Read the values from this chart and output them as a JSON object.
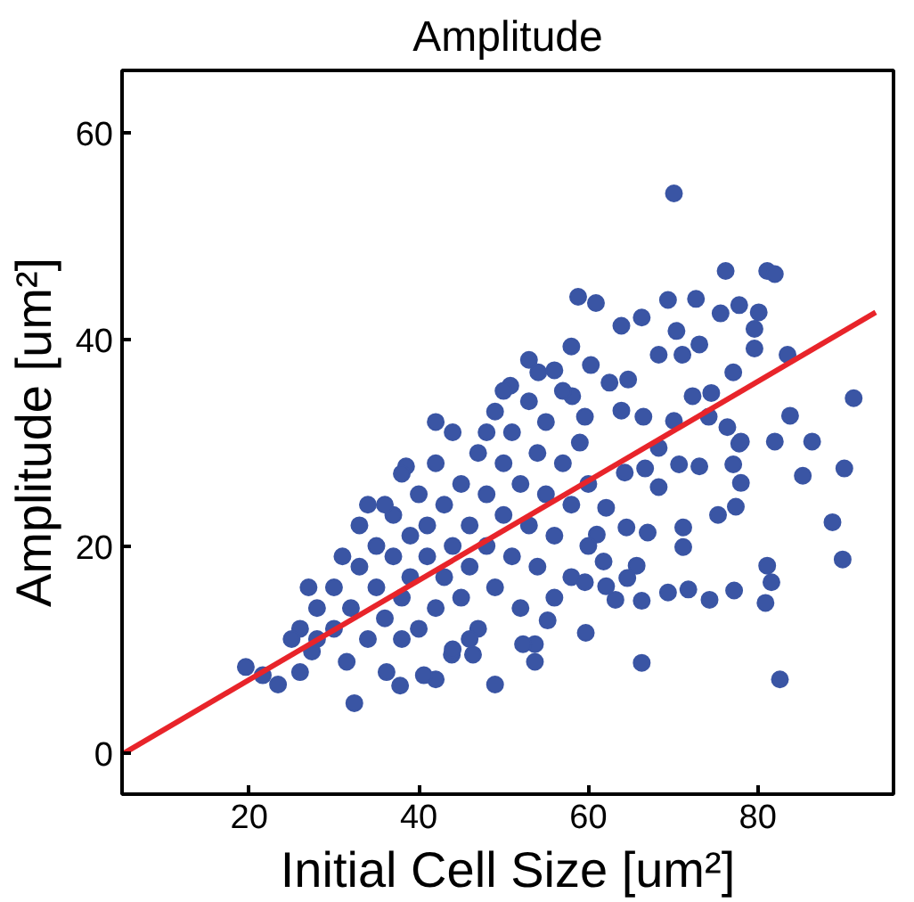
{
  "chart_data": {
    "type": "scatter",
    "title": "Amplitude",
    "xlabel": "Initial Cell Size [um²]",
    "ylabel": "Amplitude [um²]",
    "xlim": [
      5,
      96
    ],
    "ylim": [
      -4,
      66
    ],
    "xticks": [
      20,
      40,
      60,
      80
    ],
    "yticks": [
      0,
      20,
      40,
      60
    ],
    "grid": false,
    "series": [
      {
        "color": "#3a55a4",
        "marker": "circle",
        "x": [
          70.1,
          76.2,
          81.1,
          82.0,
          58.8,
          60.9,
          69.4,
          72.7,
          66.3,
          63.9,
          75.6,
          77.8,
          80.1,
          79.6,
          70.4,
          58.0,
          83.5,
          91.3,
          83.8,
          82.0,
          86.4,
          85.3,
          90.2,
          88.8,
          90.0,
          82.6,
          66.3,
          81.1,
          81.6,
          80.9,
          77.2,
          74.3,
          71.8,
          69.4,
          66.3,
          75.3,
          77.4,
          78.0,
          77.1,
          77.8,
          73.1,
          71.2,
          71.2,
          67.0,
          64.5,
          65.7,
          64.6,
          63.2,
          62.1,
          59.7,
          49.0,
          32.4,
          19.6,
          23.4,
          37.8,
          42.0,
          53.7,
          38.5,
          50.8,
          54.1,
          60.3,
          68.3,
          71.1,
          73.1,
          77.1,
          79.6,
          72.3,
          74.5,
          76.4,
          78.0,
          74.2,
          70.1,
          68.3,
          66.7,
          68.3,
          70.7,
          62.5,
          64.7,
          63.9,
          66.5,
          58.1,
          59.6,
          62.1,
          64.3,
          61.0,
          61.8,
          59.6,
          55.2,
          53.7,
          52.3,
          46.4,
          43.9,
          40.6,
          36.2,
          31.5,
          27.4,
          26.0,
          21.6,
          30,
          30,
          32,
          33,
          34,
          35,
          35,
          36,
          37,
          37,
          38,
          39,
          39,
          40,
          40,
          41,
          41,
          42,
          42,
          43,
          43,
          44,
          44,
          45,
          45,
          46,
          46,
          47,
          47,
          48,
          48,
          49,
          49,
          50,
          50,
          51,
          51,
          52,
          52,
          53,
          53,
          54,
          54,
          55,
          55,
          56,
          57,
          57,
          58,
          58,
          59,
          60,
          60,
          28,
          28,
          26,
          25,
          27,
          31,
          33,
          36,
          38,
          42,
          44,
          46,
          50,
          56,
          56,
          53,
          48,
          38,
          34
        ],
        "values": [
          54.1,
          46.6,
          46.6,
          46.3,
          44.1,
          43.5,
          43.8,
          43.9,
          42.1,
          41.3,
          42.5,
          43.3,
          42.6,
          41.0,
          40.8,
          39.3,
          38.5,
          34.3,
          32.6,
          30.1,
          30.1,
          26.8,
          27.5,
          22.3,
          18.7,
          7.1,
          8.7,
          18.1,
          16.5,
          14.5,
          15.7,
          14.8,
          15.8,
          15.5,
          14.7,
          23.0,
          23.8,
          26.1,
          27.9,
          29.9,
          27.7,
          21.8,
          19.9,
          21.3,
          21.8,
          18.1,
          16.9,
          14.8,
          16.1,
          11.6,
          6.6,
          4.8,
          8.3,
          6.6,
          6.5,
          7.1,
          8.8,
          27.7,
          35.5,
          36.8,
          37.5,
          38.5,
          38.5,
          39.5,
          36.8,
          39.1,
          34.5,
          34.8,
          31.5,
          30.1,
          32.5,
          32.1,
          29.5,
          27.5,
          25.7,
          27.9,
          35.8,
          36.1,
          33.1,
          32.5,
          34.5,
          32.5,
          23.7,
          27.1,
          21.1,
          18.5,
          16.5,
          12.8,
          10.5,
          10.5,
          9.5,
          9.5,
          7.5,
          7.8,
          8.8,
          9.8,
          7.8,
          7.5,
          12,
          16,
          14,
          18,
          11,
          16,
          20,
          13,
          19,
          23,
          15,
          21,
          17,
          12,
          25,
          19,
          22,
          14,
          28,
          17,
          24,
          20,
          31,
          15,
          26,
          22,
          18,
          29,
          12,
          25,
          20,
          33,
          16,
          23,
          28,
          19,
          31,
          26,
          14,
          22,
          34,
          29,
          18,
          25,
          32,
          21,
          28,
          35,
          24,
          17,
          30,
          26,
          20,
          14,
          11,
          12,
          11,
          16,
          19,
          22,
          24,
          27,
          32,
          10,
          11,
          35,
          15,
          37,
          38,
          31,
          11,
          24
        ]
      },
      {
        "type": "line",
        "color": "#e8242a",
        "line_style": "solid",
        "marker": "none",
        "x": [
          5.3,
          93.9
        ],
        "values": [
          0,
          42.6
        ]
      }
    ]
  }
}
